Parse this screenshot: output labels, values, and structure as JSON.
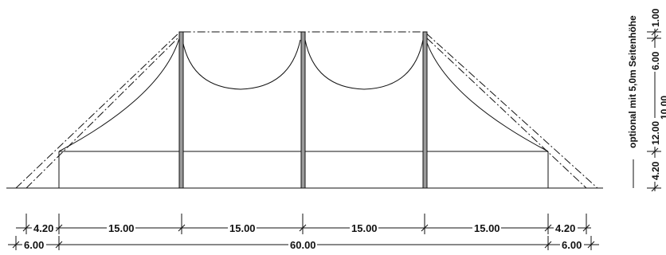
{
  "drawing": {
    "bottom_dims": {
      "row1": [
        "4.20",
        "15.00",
        "15.00",
        "15.00",
        "15.00",
        "4.20"
      ],
      "row2": [
        "6.00",
        "60.00",
        "6.00"
      ]
    },
    "right_dims": {
      "outer": [
        "4.20",
        "12.00",
        "6.00",
        "1.00"
      ],
      "inner_cut": "10.00",
      "note": "optional mit 5,0m Seitenhöhe"
    }
  }
}
